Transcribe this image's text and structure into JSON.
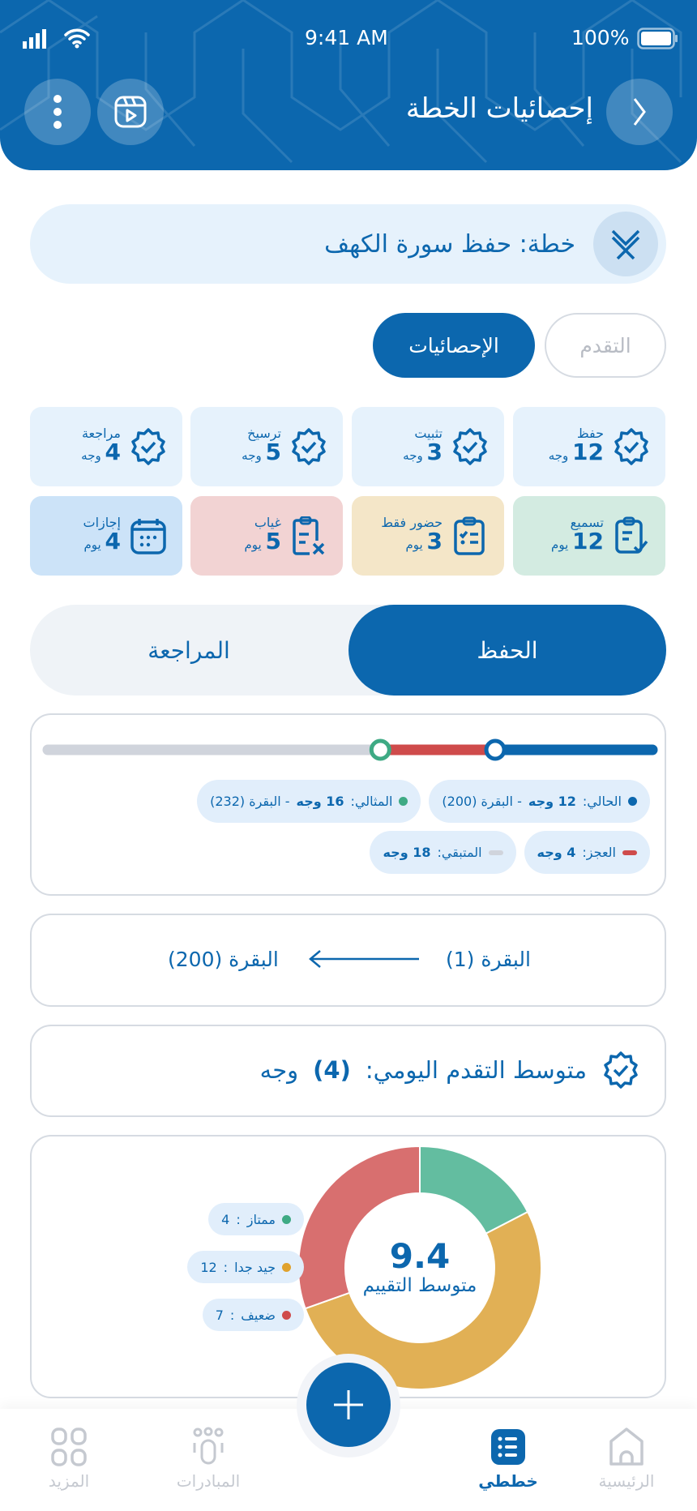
{
  "status_bar": {
    "time": "9:41 AM",
    "battery": "100%"
  },
  "header": {
    "title": "إحصائيات الخطة",
    "icons": [
      "chevron-right-icon",
      "video-icon",
      "more-vertical-icon"
    ]
  },
  "plan": {
    "title": "خطة: حفظ سورة الكهف"
  },
  "view_tabs": [
    {
      "label": "التقدم",
      "active": false
    },
    {
      "label": "الإحصائيات",
      "active": true
    }
  ],
  "stats": [
    {
      "label": "حفظ",
      "value": "12",
      "unit": "وجه",
      "icon": "badge-check-icon",
      "bg": "#e6f2fc"
    },
    {
      "label": "تثبيت",
      "value": "3",
      "unit": "وجه",
      "icon": "badge-check-icon",
      "bg": "#e6f2fc"
    },
    {
      "label": "ترسيخ",
      "value": "5",
      "unit": "وجه",
      "icon": "badge-check-icon",
      "bg": "#e6f2fc"
    },
    {
      "label": "مراجعة",
      "value": "4",
      "unit": "وجه",
      "icon": "badge-check-icon",
      "bg": "#e6f2fc"
    },
    {
      "label": "تسميع",
      "value": "12",
      "unit": "يوم",
      "icon": "clipboard-check-icon",
      "bg": "#d3ebe1"
    },
    {
      "label": "حضور فقط",
      "value": "3",
      "unit": "يوم",
      "icon": "clipboard-list-icon",
      "bg": "#f4e6c8"
    },
    {
      "label": "غياب",
      "value": "5",
      "unit": "يوم",
      "icon": "clipboard-x-icon",
      "bg": "#f2d3d3"
    },
    {
      "label": "إجازات",
      "value": "4",
      "unit": "يوم",
      "icon": "calendar-icon",
      "bg": "#cce3f8"
    }
  ],
  "segment": {
    "active": "الحفظ",
    "inactive": "المراجعة"
  },
  "progress": {
    "current_fraction": 0.26,
    "ideal_fraction": 0.45,
    "colors": {
      "current": "#0c67ae",
      "deficit": "#cf4b4b",
      "remaining": "#d0d4dc",
      "ideal": "#3eaa84"
    },
    "chips": {
      "current": {
        "label": "الحالي:",
        "value": "12 وجه",
        "extra": "- البقرة (200)"
      },
      "ideal": {
        "label": "المثالي:",
        "value": "16 وجه",
        "extra": "- البقرة (232)"
      },
      "deficit": {
        "label": "العجز:",
        "value": "4 وجه"
      },
      "remaining": {
        "label": "المتبقي:",
        "value": "18 وجه"
      }
    }
  },
  "range": {
    "from": "البقرة (1)",
    "to": "البقرة (200)"
  },
  "daily_avg": {
    "label": "متوسط التقدم اليومي:",
    "value": "(4)",
    "unit": "وجه"
  },
  "chart_data": {
    "type": "pie",
    "center_value": "9.4",
    "center_label": "متوسط التقييم",
    "series": [
      {
        "name": "ممتاز",
        "value": 4,
        "color": "#63bda0",
        "dot": "#3eaa84"
      },
      {
        "name": "جيد جدا",
        "value": 12,
        "color": "#e1b055",
        "dot": "#e0a22d"
      },
      {
        "name": "ضعيف",
        "value": 7,
        "color": "#d86f6f",
        "dot": "#cf4b4b"
      }
    ]
  },
  "bottom_nav": [
    {
      "label": "الرئيسية",
      "active": false
    },
    {
      "label": "خططي",
      "active": true
    },
    {
      "label": "المبادرات",
      "active": false
    },
    {
      "label": "المزيد",
      "active": false
    }
  ]
}
